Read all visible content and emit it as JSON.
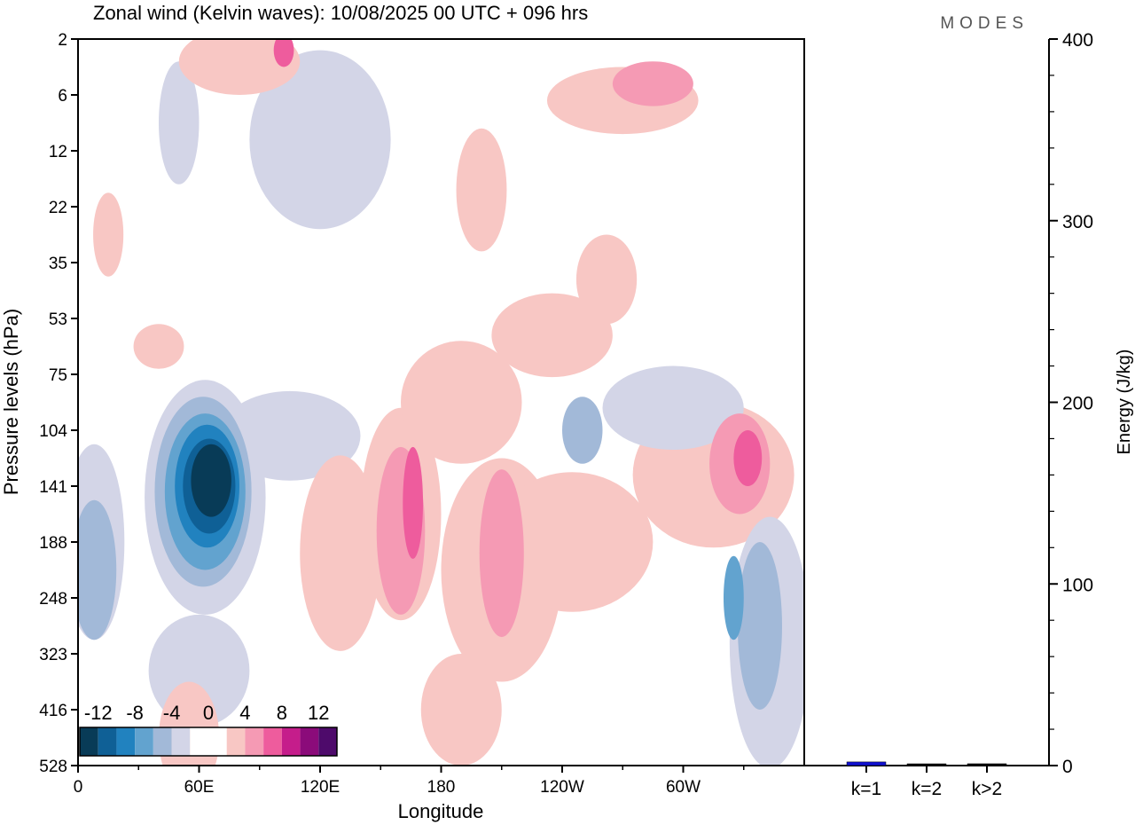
{
  "chart_data": {
    "type": "heatmap",
    "title": "Zonal wind (Kelvin waves):  10/08/2025  00 UTC  + 096 hrs",
    "brand": "MODES",
    "xlabel": "Longitude",
    "ylabel": "Pressure levels (hPa)",
    "x_ticks": [
      {
        "lon": 0,
        "label": "0"
      },
      {
        "lon": 60,
        "label": "60E"
      },
      {
        "lon": 120,
        "label": "120E"
      },
      {
        "lon": 180,
        "label": "180"
      },
      {
        "lon": 240,
        "label": "120W"
      },
      {
        "lon": 300,
        "label": "60W"
      }
    ],
    "xlim": [
      0,
      360
    ],
    "y_levels": [
      "2",
      "6",
      "12",
      "22",
      "35",
      "53",
      "75",
      "104",
      "141",
      "188",
      "248",
      "323",
      "416",
      "528"
    ],
    "colorbar": {
      "tick_labels": [
        "-12",
        "-8",
        "-4",
        "0",
        "4",
        "8",
        "12"
      ],
      "bounds": [
        -14,
        -12,
        -10,
        -8,
        -6,
        -4,
        -2,
        0,
        2,
        4,
        6,
        8,
        10,
        12,
        14
      ],
      "colors": [
        "#083b57",
        "#0f6096",
        "#2182bf",
        "#62a3cf",
        "#a2b9d8",
        "#d3d5e7",
        "#ffffff",
        "#ffffff",
        "#f8c7c4",
        "#f59ab4",
        "#ee5c9d",
        "#c51d8b",
        "#8b0b7a",
        "#4e0a6b"
      ]
    },
    "field_blobs": [
      {
        "lon": 63,
        "level": 8.2,
        "lon_span": 60,
        "level_span": 4.2,
        "value": -3
      },
      {
        "lon": 62,
        "level": 8.1,
        "lon_span": 48,
        "level_span": 3.4,
        "value": -5
      },
      {
        "lon": 63,
        "level": 8.1,
        "lon_span": 40,
        "level_span": 2.8,
        "value": -7
      },
      {
        "lon": 64,
        "level": 8.0,
        "lon_span": 32,
        "level_span": 2.2,
        "value": -9
      },
      {
        "lon": 65,
        "level": 8.0,
        "lon_span": 26,
        "level_span": 1.7,
        "value": -11
      },
      {
        "lon": 66,
        "level": 7.9,
        "lon_span": 20,
        "level_span": 1.3,
        "value": -13
      },
      {
        "lon": 105,
        "level": 7.1,
        "lon_span": 70,
        "level_span": 1.6,
        "value": -3
      },
      {
        "lon": 8,
        "level": 9.5,
        "lon_span": 22,
        "level_span": 2.5,
        "value": -5
      },
      {
        "lon": 8,
        "level": 9.0,
        "lon_span": 30,
        "level_span": 3.5,
        "value": -3
      },
      {
        "lon": 60,
        "level": 11.3,
        "lon_span": 50,
        "level_span": 2.0,
        "value": -3
      },
      {
        "lon": 130,
        "level": 9.2,
        "lon_span": 40,
        "level_span": 3.5,
        "value": 3
      },
      {
        "lon": 160,
        "level": 8.5,
        "lon_span": 40,
        "level_span": 3.8,
        "value": 3
      },
      {
        "lon": 190,
        "level": 6.5,
        "lon_span": 60,
        "level_span": 2.2,
        "value": 3
      },
      {
        "lon": 235,
        "level": 5.3,
        "lon_span": 60,
        "level_span": 1.5,
        "value": 3
      },
      {
        "lon": 262,
        "level": 4.3,
        "lon_span": 30,
        "level_span": 1.6,
        "value": 3
      },
      {
        "lon": 160,
        "level": 8.8,
        "lon_span": 24,
        "level_span": 3.0,
        "value": 5
      },
      {
        "lon": 166,
        "level": 8.3,
        "lon_span": 10,
        "level_span": 2.0,
        "value": 7
      },
      {
        "lon": 210,
        "level": 9.5,
        "lon_span": 60,
        "level_span": 4.0,
        "value": 3
      },
      {
        "lon": 210,
        "level": 9.2,
        "lon_span": 22,
        "level_span": 3.0,
        "value": 5
      },
      {
        "lon": 245,
        "level": 9.0,
        "lon_span": 80,
        "level_span": 2.5,
        "value": 3
      },
      {
        "lon": 190,
        "level": 12.0,
        "lon_span": 40,
        "level_span": 2.0,
        "value": 3
      },
      {
        "lon": 315,
        "level": 7.8,
        "lon_span": 80,
        "level_span": 2.6,
        "value": 3
      },
      {
        "lon": 328,
        "level": 7.6,
        "lon_span": 30,
        "level_span": 1.8,
        "value": 5
      },
      {
        "lon": 332,
        "level": 7.5,
        "lon_span": 14,
        "level_span": 1.0,
        "value": 7
      },
      {
        "lon": 343,
        "level": 10.8,
        "lon_span": 40,
        "level_span": 4.5,
        "value": -3
      },
      {
        "lon": 338,
        "level": 10.5,
        "lon_span": 22,
        "level_span": 3.0,
        "value": -5
      },
      {
        "lon": 325,
        "level": 10.0,
        "lon_span": 10,
        "level_span": 1.5,
        "value": -7
      },
      {
        "lon": 295,
        "level": 6.6,
        "lon_span": 70,
        "level_span": 1.5,
        "value": -3
      },
      {
        "lon": 250,
        "level": 7.0,
        "lon_span": 20,
        "level_span": 1.2,
        "value": -5
      },
      {
        "lon": 120,
        "level": 1.8,
        "lon_span": 70,
        "level_span": 3.2,
        "value": -3
      },
      {
        "lon": 50,
        "level": 1.5,
        "lon_span": 20,
        "level_span": 2.2,
        "value": -3
      },
      {
        "lon": 200,
        "level": 2.7,
        "lon_span": 25,
        "level_span": 2.2,
        "value": 3
      },
      {
        "lon": 270,
        "level": 1.1,
        "lon_span": 75,
        "level_span": 1.2,
        "value": 3
      },
      {
        "lon": 285,
        "level": 0.8,
        "lon_span": 40,
        "level_span": 0.8,
        "value": 5
      },
      {
        "lon": 80,
        "level": 0.4,
        "lon_span": 60,
        "level_span": 1.2,
        "value": 3
      },
      {
        "lon": 102,
        "level": 0.2,
        "lon_span": 10,
        "level_span": 0.6,
        "value": 7
      },
      {
        "lon": 55,
        "level": 12.5,
        "lon_span": 30,
        "level_span": 2.0,
        "value": 3
      },
      {
        "lon": 40,
        "level": 5.5,
        "lon_span": 25,
        "level_span": 0.8,
        "value": 3
      },
      {
        "lon": 15,
        "level": 3.5,
        "lon_span": 15,
        "level_span": 1.5,
        "value": 3
      }
    ],
    "energy_panel": {
      "ylabel": "Energy (J/kg)",
      "ylim": [
        0,
        400
      ],
      "y_ticks": [
        "0",
        "100",
        "200",
        "300",
        "400"
      ],
      "categories": [
        "k=1",
        "k=2",
        "k>2"
      ],
      "values": [
        2,
        0.5,
        1
      ],
      "bar_colors": [
        "#1010d0",
        "#000000",
        "#000000"
      ]
    }
  }
}
